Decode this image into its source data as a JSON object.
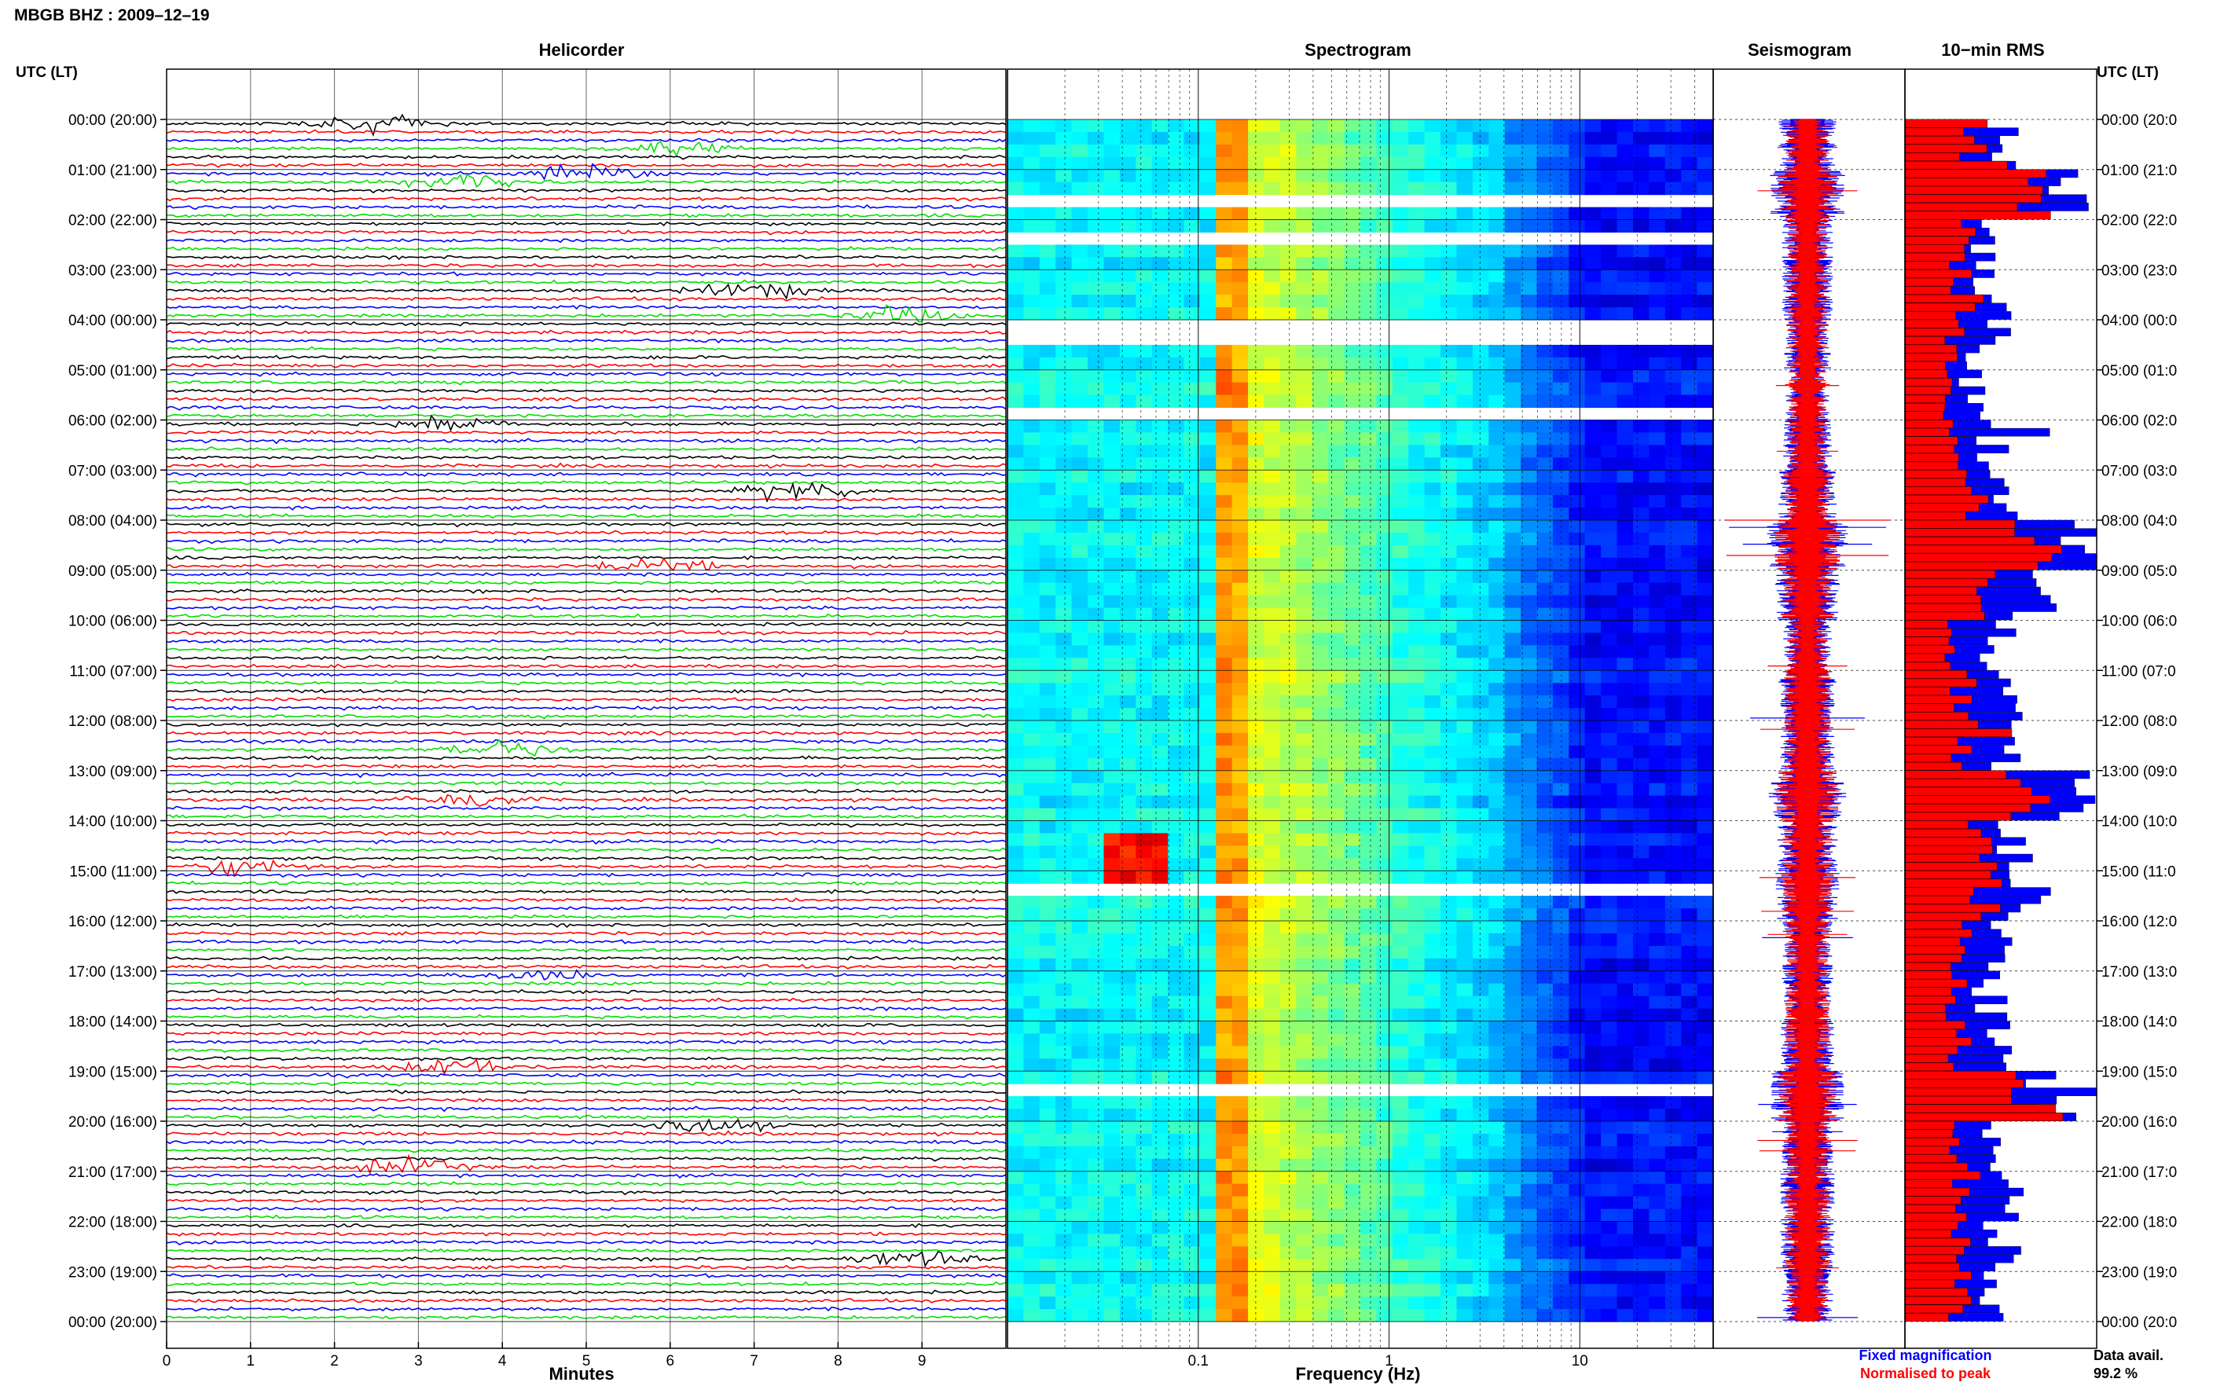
{
  "header": {
    "station_title": "MBGB BHZ : 2009–12–19"
  },
  "panels": {
    "helicorder": {
      "title": "Helicorder",
      "xlabel": "Minutes"
    },
    "spectrogram": {
      "title": "Spectrogram",
      "xlabel": "Frequency (Hz)"
    },
    "seismogram": {
      "title": "Seismogram"
    },
    "rms": {
      "title": "10−min RMS"
    }
  },
  "time_axis": {
    "left_label": "UTC (LT)",
    "right_label": "UTC (LT)",
    "ticks": [
      "00:00 (20:00)",
      "01:00 (21:00)",
      "02:00 (22:00)",
      "03:00 (23:00)",
      "04:00 (00:00)",
      "05:00 (01:00)",
      "06:00 (02:00)",
      "07:00 (03:00)",
      "08:00 (04:00)",
      "09:00 (05:00)",
      "10:00 (06:00)",
      "11:00 (07:00)",
      "12:00 (08:00)",
      "13:00 (09:00)",
      "14:00 (10:00)",
      "15:00 (11:00)",
      "16:00 (12:00)",
      "17:00 (13:00)",
      "18:00 (14:00)",
      "19:00 (15:00)",
      "20:00 (16:00)",
      "21:00 (17:00)",
      "22:00 (18:00)",
      "23:00 (19:00)",
      "00:00 (20:00)"
    ],
    "right_ticks": [
      "00:00 (20:0",
      "01:00 (21:0",
      "02:00 (22:0",
      "03:00 (23:0",
      "04:00 (00:0",
      "05:00 (01:0",
      "06:00 (02:0",
      "07:00 (03:0",
      "08:00 (04:0",
      "09:00 (05:0",
      "10:00 (06:0",
      "11:00 (07:0",
      "12:00 (08:0",
      "13:00 (09:0",
      "14:00 (10:0",
      "15:00 (11:0",
      "16:00 (12:0",
      "17:00 (13:0",
      "18:00 (14:0",
      "19:00 (15:0",
      "20:00 (16:0",
      "21:00 (17:0",
      "22:00 (18:0",
      "23:00 (19:0",
      "00:00 (20:0"
    ]
  },
  "legend": {
    "fixed": "Fixed magnification",
    "normalised": "Normalised to peak",
    "fixed_color": "#0000ff",
    "normalised_color": "#ff0000",
    "avail_label": "Data avail.",
    "avail_value": "99.2 %"
  },
  "chart_data": [
    {
      "type": "line",
      "panel": "helicorder",
      "xlabel": "Minutes",
      "xlim": [
        0,
        10
      ],
      "x_ticks": [
        "0",
        "1",
        "2",
        "3",
        "4",
        "5",
        "6",
        "7",
        "8",
        "9"
      ],
      "trace_colors": [
        "#000000",
        "#ff0000",
        "#0000ff",
        "#00e000"
      ],
      "hours": 24,
      "traces_per_hour": 6,
      "events": [
        {
          "hour": 0.0,
          "minute": 2.5,
          "color": "#000000"
        },
        {
          "hour": 0.5,
          "minute": 6.0,
          "color": "#ff0000"
        },
        {
          "hour": 1.0,
          "minute": 5.0,
          "color": "#00e000"
        },
        {
          "hour": 1.2,
          "minute": 3.5,
          "color": "#000000"
        },
        {
          "hour": 3.3,
          "minute": 7.0,
          "color": "#000000"
        },
        {
          "hour": 3.8,
          "minute": 8.8,
          "color": "#00e000"
        },
        {
          "hour": 6.0,
          "minute": 3.3,
          "color": "#ff0000"
        },
        {
          "hour": 7.3,
          "minute": 7.5,
          "color": "#00e000"
        },
        {
          "hour": 8.8,
          "minute": 5.8,
          "color": "#000000"
        },
        {
          "hour": 12.5,
          "minute": 4.0,
          "color": "#000000"
        },
        {
          "hour": 13.5,
          "minute": 3.5,
          "color": "#ff0000"
        },
        {
          "hour": 14.8,
          "minute": 1.0,
          "color": "#00e000"
        },
        {
          "hour": 17.0,
          "minute": 4.5,
          "color": "#0000ff"
        },
        {
          "hour": 18.8,
          "minute": 3.5,
          "color": "#ff0000"
        },
        {
          "hour": 20.0,
          "minute": 6.5,
          "color": "#0000ff"
        },
        {
          "hour": 20.8,
          "minute": 2.8,
          "color": "#ff0000"
        },
        {
          "hour": 22.6,
          "minute": 8.9,
          "color": "#000000"
        }
      ]
    },
    {
      "type": "heatmap",
      "panel": "spectrogram",
      "xlabel": "Frequency (Hz)",
      "x_scale": "log",
      "xlim": [
        0.01,
        50
      ],
      "x_ticks": [
        "0.1",
        "1",
        "10"
      ],
      "colormap": "jet",
      "gaps_hours": [
        1.5,
        2.2,
        4.0,
        4.3,
        5.7,
        15.2,
        19.3
      ]
    },
    {
      "type": "line",
      "panel": "seismogram",
      "series": [
        {
          "name": "Fixed magnification",
          "color": "#0000ff"
        },
        {
          "name": "Normalised to peak",
          "color": "#ff0000"
        }
      ]
    },
    {
      "type": "bar",
      "panel": "10-min RMS",
      "orientation": "horizontal",
      "bins": 144,
      "series": [
        {
          "name": "Fixed magnification",
          "color": "#0000ff",
          "hourly_levels": [
            0.55,
            0.8,
            0.45,
            0.45,
            0.4,
            0.35,
            0.4,
            0.55,
            0.9,
            0.65,
            0.4,
            0.5,
            0.5,
            0.85,
            0.6,
            0.65,
            0.45,
            0.45,
            0.5,
            0.8,
            0.45,
            0.5,
            0.5,
            0.45
          ]
        },
        {
          "name": "Normalised to peak",
          "color": "#ff0000",
          "hourly_levels": [
            0.35,
            0.65,
            0.3,
            0.3,
            0.25,
            0.22,
            0.25,
            0.35,
            0.7,
            0.4,
            0.25,
            0.3,
            0.32,
            0.7,
            0.4,
            0.45,
            0.3,
            0.28,
            0.3,
            0.7,
            0.3,
            0.32,
            0.3,
            0.28
          ]
        }
      ]
    }
  ]
}
